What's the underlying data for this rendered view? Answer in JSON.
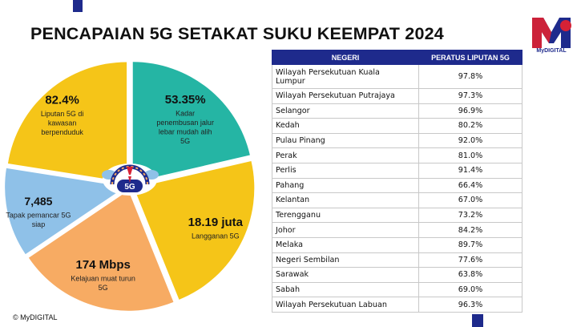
{
  "title": "PENCAPAIAN 5G SETAKAT SUKU KEEMPAT 2024",
  "brand": {
    "logo_letter": "M",
    "logo_text": "MyDIGITAL",
    "accent": "#1e2a8c"
  },
  "footer": {
    "text": "© MyDIGITAL"
  },
  "chart_data": [
    {
      "type": "pie",
      "title": "",
      "center_label": "5G",
      "segments": [
        {
          "value": "82.4%",
          "label": "Liputan 5G di kawasan berpenduduk",
          "label_lines": [
            "Liputan 5G di",
            "kawasan",
            "berpenduduk"
          ],
          "color": "#f5c518"
        },
        {
          "value": "53.35%",
          "label": "Kadar penembusan jalur lebar mudah alih 5G",
          "label_lines": [
            "Kadar",
            "penembusan jalur",
            "lebar mudah alih",
            "5G"
          ],
          "color": "#25b5a4"
        },
        {
          "value": "18.19 juta",
          "label": "Langganan 5G",
          "label_lines": [
            "Langganan 5G"
          ],
          "color": "#f5c518"
        },
        {
          "value": "174 Mbps",
          "label": "Kelajuan muat turun 5G",
          "label_lines": [
            "Kelajuan muat turun",
            "5G"
          ],
          "color": "#f7ab63"
        },
        {
          "value": "7,485",
          "label": "Tapak pemancar 5G siap",
          "label_lines": [
            "Tapak pemancar 5G",
            "siap"
          ],
          "color": "#8fc1e8"
        }
      ]
    },
    {
      "type": "table",
      "columns": [
        "NEGERI",
        "PERATUS LIPUTAN 5G"
      ],
      "rows": [
        {
          "state_lines": [
            "Wilayah Persekutuan Kuala",
            "Lumpur"
          ],
          "state": "Wilayah Persekutuan Kuala Lumpur",
          "value": "97.8%"
        },
        {
          "state_lines": [
            "Wilayah Persekutuan Putrajaya"
          ],
          "state": "Wilayah Persekutuan Putrajaya",
          "value": "97.3%"
        },
        {
          "state_lines": [
            "Selangor"
          ],
          "state": "Selangor",
          "value": "96.9%"
        },
        {
          "state_lines": [
            "Kedah"
          ],
          "state": "Kedah",
          "value": "80.2%"
        },
        {
          "state_lines": [
            "Pulau Pinang"
          ],
          "state": "Pulau Pinang",
          "value": "92.0%"
        },
        {
          "state_lines": [
            "Perak"
          ],
          "state": "Perak",
          "value": "81.0%"
        },
        {
          "state_lines": [
            "Perlis"
          ],
          "state": "Perlis",
          "value": "91.4%"
        },
        {
          "state_lines": [
            "Pahang"
          ],
          "state": "Pahang",
          "value": "66.4%"
        },
        {
          "state_lines": [
            "Kelantan"
          ],
          "state": "Kelantan",
          "value": "67.0%"
        },
        {
          "state_lines": [
            "Terengganu"
          ],
          "state": "Terengganu",
          "value": "73.2%"
        },
        {
          "state_lines": [
            "Johor"
          ],
          "state": "Johor",
          "value": "84.2%"
        },
        {
          "state_lines": [
            "Melaka"
          ],
          "state": "Melaka",
          "value": "89.7%"
        },
        {
          "state_lines": [
            "Negeri Sembilan"
          ],
          "state": "Negeri Sembilan",
          "value": "77.6%"
        },
        {
          "state_lines": [
            "Sarawak"
          ],
          "state": "Sarawak",
          "value": "63.8%"
        },
        {
          "state_lines": [
            "Sabah"
          ],
          "state": "Sabah",
          "value": "69.0%"
        },
        {
          "state_lines": [
            "Wilayah Persekutuan Labuan"
          ],
          "state": "Wilayah Persekutuan Labuan",
          "value": "96.3%"
        }
      ]
    }
  ]
}
